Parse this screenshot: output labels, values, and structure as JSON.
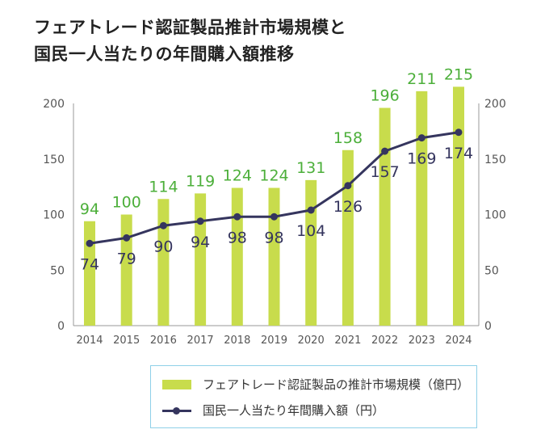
{
  "title": {
    "line1": "フェアトレード認証製品推計市場規模と",
    "line2": "国民一人当たりの年間購入額推移"
  },
  "chart_data": {
    "type": "bar+line",
    "categories": [
      "2014",
      "2015",
      "2016",
      "2017",
      "2018",
      "2019",
      "2020",
      "2021",
      "2022",
      "2023",
      "2024"
    ],
    "series": [
      {
        "name": "フェアトレード認証製品の推計市場規模（億円）",
        "type": "bar",
        "axis": "left",
        "color": "#c8dc4c",
        "label_color": "#4caf3a",
        "values": [
          94,
          100,
          114,
          119,
          124,
          124,
          131,
          158,
          196,
          211,
          215
        ]
      },
      {
        "name": "国民一人当たり年間購入額（円）",
        "type": "line",
        "axis": "right",
        "color": "#35355e",
        "label_color": "#35355e",
        "values": [
          74,
          79,
          90,
          94,
          98,
          98,
          104,
          126,
          157,
          169,
          174
        ]
      }
    ],
    "y_left": {
      "range": [
        0,
        200
      ],
      "ticks": [
        "0",
        "50",
        "100",
        "150",
        "200"
      ]
    },
    "y_right": {
      "range": [
        0,
        200
      ],
      "ticks": [
        "0",
        "50",
        "100",
        "150",
        "200"
      ]
    },
    "grid": false,
    "legend_position": "bottom-right"
  },
  "legend": {
    "bar_label": "フェアトレード認証製品の推計市場規模（億円）",
    "line_label": "国民一人当たり年間購入額（円）"
  }
}
